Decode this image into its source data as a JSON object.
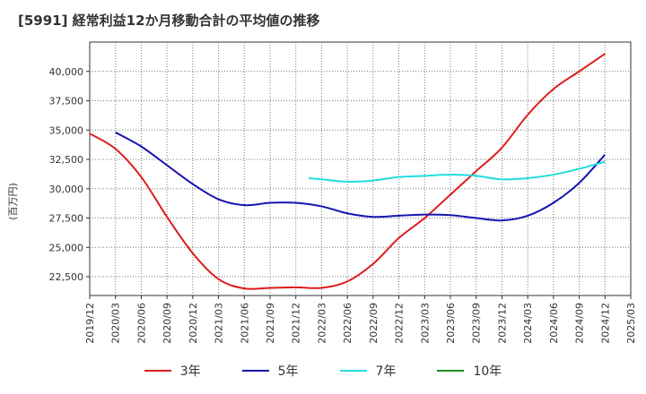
{
  "chart_data": {
    "type": "line",
    "title": "[5991]  経常利益12か月移動合計の平均値の推移",
    "ylabel": "(百万円)",
    "xlabel": "",
    "ylim": [
      20900,
      42500
    ],
    "yticks": [
      22500,
      25000,
      27500,
      30000,
      32500,
      35000,
      37500,
      40000
    ],
    "ytick_labels": [
      "22,500",
      "25,000",
      "27,500",
      "30,000",
      "32,500",
      "35,000",
      "37,500",
      "40,000"
    ],
    "xticks": [
      "2019/12",
      "2020/03",
      "2020/06",
      "2020/09",
      "2020/12",
      "2021/03",
      "2021/06",
      "2021/09",
      "2021/12",
      "2022/03",
      "2022/06",
      "2022/09",
      "2022/12",
      "2023/03",
      "2023/06",
      "2023/09",
      "2023/12",
      "2024/03",
      "2024/06",
      "2024/09",
      "2024/12",
      "2025/03"
    ],
    "grid": true,
    "legend_position": "bottom",
    "series": [
      {
        "name": "3年",
        "color": "#dd1c1c",
        "x": [
          0,
          1,
          2,
          3,
          4,
          5,
          6,
          7,
          8,
          9,
          10,
          11,
          12,
          13,
          14,
          15,
          16,
          17,
          18,
          19,
          20
        ],
        "values": [
          34700,
          33400,
          31000,
          27600,
          24500,
          22300,
          21500,
          21550,
          21600,
          21550,
          22100,
          23600,
          25800,
          27500,
          29500,
          31500,
          33500,
          36300,
          38500,
          40000,
          41500
        ]
      },
      {
        "name": "5年",
        "color": "#1515b4",
        "x": [
          1,
          2,
          3,
          4,
          5,
          6,
          7,
          8,
          9,
          10,
          11,
          12,
          13,
          14,
          15,
          16,
          17,
          18,
          19,
          20
        ],
        "values": [
          34800,
          33600,
          32000,
          30400,
          29100,
          28600,
          28800,
          28800,
          28500,
          27900,
          27600,
          27700,
          27800,
          27750,
          27500,
          27300,
          27700,
          28800,
          30500,
          32900
        ]
      },
      {
        "name": "7年",
        "color": "#22dddd",
        "x": [
          8.5,
          9,
          10,
          11,
          12,
          13,
          14,
          15,
          16,
          17,
          18,
          19,
          20
        ],
        "values": [
          30900,
          30800,
          30600,
          30700,
          31000,
          31100,
          31200,
          31100,
          30800,
          30900,
          31200,
          31700,
          32300
        ]
      },
      {
        "name": "10年",
        "color": "#228b22",
        "x": [],
        "values": []
      }
    ]
  }
}
